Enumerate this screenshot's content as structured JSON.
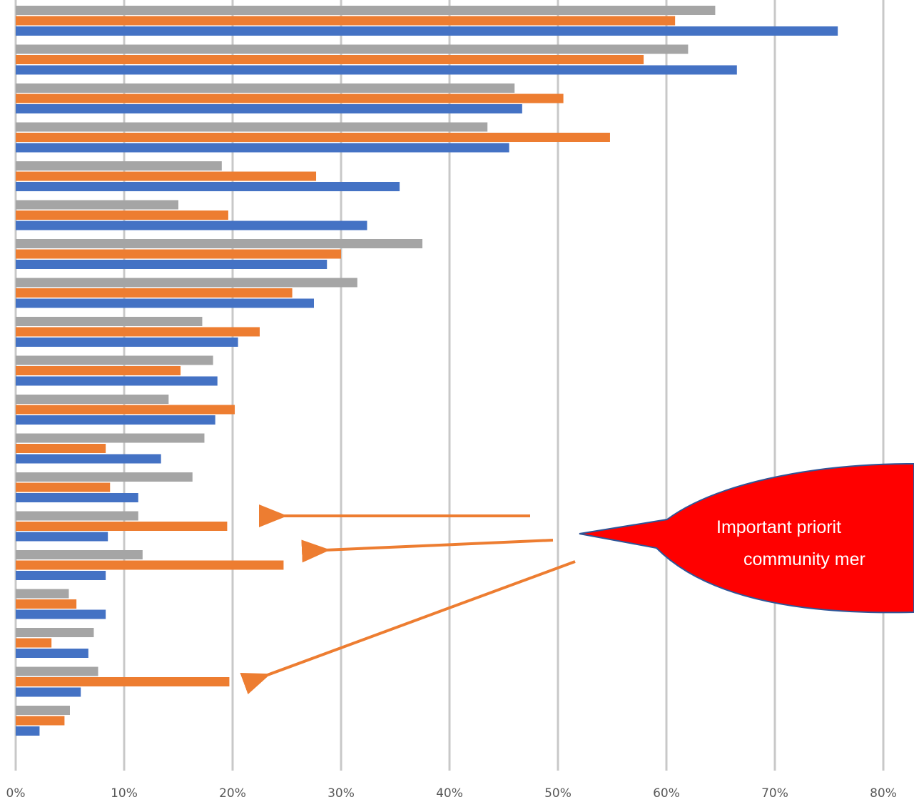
{
  "chart_data": {
    "type": "bar",
    "orientation": "horizontal",
    "xlim": [
      0,
      0.8
    ],
    "xticks": [
      "0%",
      "10%",
      "20%",
      "30%",
      "40%",
      "50%",
      "60%",
      "70%",
      "80%"
    ],
    "grid": true,
    "series": [
      {
        "color": "#a5a5a5",
        "values": [
          0.645,
          0.62,
          0.46,
          0.435,
          0.19,
          0.15,
          0.375,
          0.315,
          0.172,
          0.182,
          0.141,
          0.174,
          0.163,
          0.113,
          0.117,
          0.049,
          0.072,
          0.076,
          0.05
        ]
      },
      {
        "color": "#ed7d31",
        "values": [
          0.608,
          0.579,
          0.505,
          0.548,
          0.277,
          0.196,
          0.3,
          0.255,
          0.225,
          0.152,
          0.202,
          0.083,
          0.087,
          0.195,
          0.247,
          0.056,
          0.033,
          0.197,
          0.045
        ]
      },
      {
        "color": "#4472c4",
        "values": [
          0.758,
          0.665,
          0.467,
          0.455,
          0.354,
          0.324,
          0.287,
          0.275,
          0.205,
          0.186,
          0.184,
          0.134,
          0.113,
          0.085,
          0.083,
          0.083,
          0.067,
          0.06,
          0.022
        ]
      }
    ]
  },
  "callout": {
    "text_line1": "Important priorit",
    "text_line2": "community mer",
    "fill_color": "#ff0000",
    "arrow_color": "#ed7d31"
  }
}
